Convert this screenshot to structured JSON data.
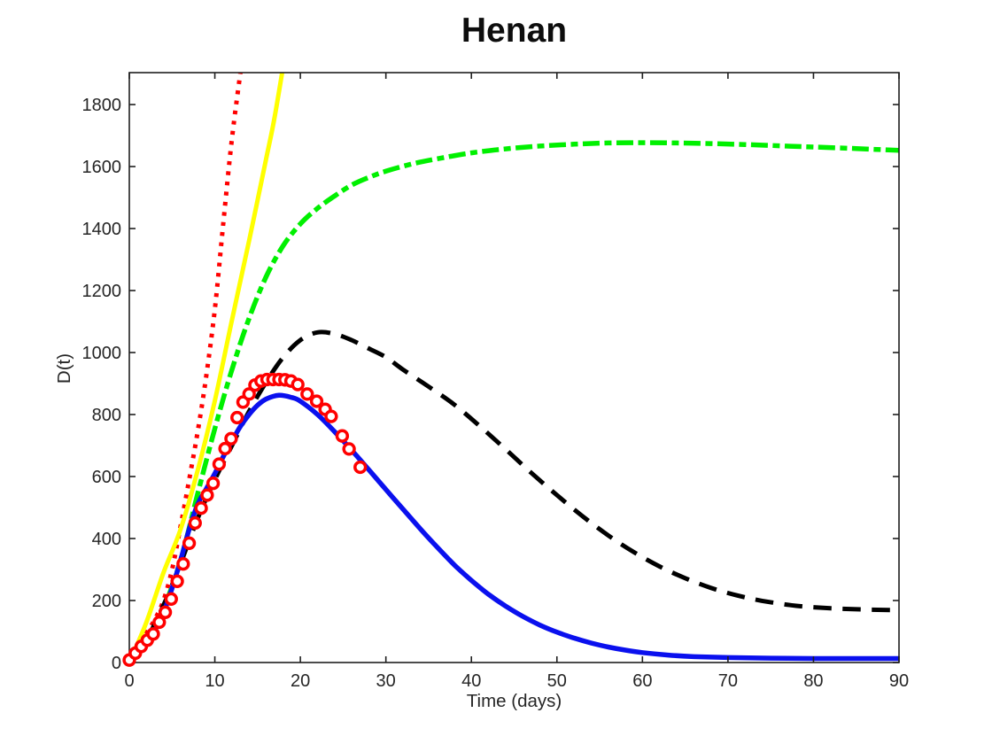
{
  "page": {
    "background": "#ffffff"
  },
  "chart_data": {
    "type": "line",
    "title": "Henan",
    "xlabel": "Time (days)",
    "ylabel": "D(t)",
    "xlim": [
      0,
      90
    ],
    "ylim": [
      0,
      1903
    ],
    "xticks": [
      0,
      10,
      20,
      30,
      40,
      50,
      60,
      70,
      80,
      90
    ],
    "yticks": [
      0,
      200,
      400,
      600,
      800,
      1000,
      1200,
      1400,
      1600,
      1800
    ],
    "grid": false,
    "legend": "none",
    "axis_color": "#1f1f1f",
    "tick_label_color": "#262626",
    "series": [
      {
        "name": "red-dotted-curve",
        "color": "#ff0000",
        "style": "dotted",
        "width": 5,
        "points": [
          [
            0,
            10
          ],
          [
            1,
            60
          ],
          [
            2,
            95
          ],
          [
            3,
            140
          ],
          [
            4,
            200
          ],
          [
            5,
            300
          ],
          [
            6,
            440
          ],
          [
            7,
            590
          ],
          [
            8,
            745
          ],
          [
            9,
            925
          ],
          [
            10,
            1140
          ],
          [
            11,
            1420
          ],
          [
            12,
            1690
          ],
          [
            13,
            1905
          ],
          [
            13.5,
            2010
          ]
        ]
      },
      {
        "name": "yellow-solid-curve",
        "color": "#ffff00",
        "style": "solid",
        "width": 5,
        "points": [
          [
            0,
            0
          ],
          [
            2,
            130
          ],
          [
            4,
            290
          ],
          [
            6,
            430
          ],
          [
            8,
            620
          ],
          [
            10,
            845
          ],
          [
            12,
            1105
          ],
          [
            14,
            1360
          ],
          [
            16,
            1625
          ],
          [
            17,
            1760
          ],
          [
            18.3,
            1975
          ]
        ]
      },
      {
        "name": "green-dashdot-curve",
        "color": "#00f000",
        "style": "dashdot",
        "width": 5.5,
        "points": [
          [
            0,
            8
          ],
          [
            2,
            70
          ],
          [
            4,
            175
          ],
          [
            6,
            330
          ],
          [
            8,
            545
          ],
          [
            10,
            755
          ],
          [
            12,
            945
          ],
          [
            14,
            1110
          ],
          [
            16,
            1245
          ],
          [
            18,
            1345
          ],
          [
            20,
            1415
          ],
          [
            22,
            1465
          ],
          [
            24,
            1505
          ],
          [
            26,
            1540
          ],
          [
            28,
            1565
          ],
          [
            30,
            1585
          ],
          [
            33,
            1608
          ],
          [
            36,
            1625
          ],
          [
            40,
            1644
          ],
          [
            44,
            1657
          ],
          [
            48,
            1666
          ],
          [
            52,
            1672
          ],
          [
            56,
            1676
          ],
          [
            60,
            1677
          ],
          [
            64,
            1676
          ],
          [
            68,
            1674
          ],
          [
            72,
            1671
          ],
          [
            76,
            1667
          ],
          [
            80,
            1663
          ],
          [
            85,
            1658
          ],
          [
            90,
            1652
          ]
        ]
      },
      {
        "name": "black-dashed-curve",
        "color": "#000000",
        "style": "dashed",
        "width": 5,
        "points": [
          [
            0,
            5
          ],
          [
            2,
            75
          ],
          [
            4,
            185
          ],
          [
            6,
            320
          ],
          [
            8,
            465
          ],
          [
            10,
            590
          ],
          [
            12,
            700
          ],
          [
            14,
            810
          ],
          [
            16,
            905
          ],
          [
            18,
            985
          ],
          [
            20,
            1040
          ],
          [
            22,
            1065
          ],
          [
            24,
            1060
          ],
          [
            26,
            1040
          ],
          [
            28,
            1013
          ],
          [
            30,
            985
          ],
          [
            32,
            945
          ],
          [
            35,
            890
          ],
          [
            38,
            832
          ],
          [
            41,
            762
          ],
          [
            44,
            688
          ],
          [
            47,
            612
          ],
          [
            50,
            540
          ],
          [
            53,
            472
          ],
          [
            56,
            410
          ],
          [
            59,
            356
          ],
          [
            62,
            310
          ],
          [
            65,
            272
          ],
          [
            68,
            241
          ],
          [
            71,
            217
          ],
          [
            74,
            199
          ],
          [
            78,
            183
          ],
          [
            82,
            175
          ],
          [
            86,
            171
          ],
          [
            90,
            169
          ]
        ]
      },
      {
        "name": "blue-solid-curve",
        "color": "#0a10ee",
        "style": "solid",
        "width": 5.5,
        "points": [
          [
            0,
            5
          ],
          [
            1,
            30
          ],
          [
            2,
            60
          ],
          [
            3,
            105
          ],
          [
            4,
            160
          ],
          [
            5,
            240
          ],
          [
            6,
            330
          ],
          [
            7,
            430
          ],
          [
            8,
            510
          ],
          [
            9,
            560
          ],
          [
            10,
            610
          ],
          [
            11,
            665
          ],
          [
            12,
            715
          ],
          [
            13,
            762
          ],
          [
            14,
            800
          ],
          [
            15,
            830
          ],
          [
            16,
            850
          ],
          [
            17.5,
            862
          ],
          [
            19,
            855
          ],
          [
            20,
            843
          ],
          [
            22,
            800
          ],
          [
            24,
            745
          ],
          [
            26,
            685
          ],
          [
            28,
            622
          ],
          [
            30,
            558
          ],
          [
            32,
            495
          ],
          [
            34,
            432
          ],
          [
            36,
            372
          ],
          [
            38,
            315
          ],
          [
            40,
            265
          ],
          [
            42,
            220
          ],
          [
            44,
            182
          ],
          [
            46,
            149
          ],
          [
            48,
            121
          ],
          [
            50,
            98
          ],
          [
            52,
            79
          ],
          [
            54,
            63
          ],
          [
            56,
            50
          ],
          [
            58,
            40
          ],
          [
            60,
            32
          ],
          [
            63,
            24
          ],
          [
            66,
            19
          ],
          [
            70,
            16
          ],
          [
            75,
            14
          ],
          [
            80,
            13
          ],
          [
            85,
            13
          ],
          [
            90,
            13
          ]
        ]
      }
    ],
    "scatter": {
      "name": "red-circle-data",
      "marker": "o",
      "edge_color": "#ff0000",
      "face_color": "#ffffff",
      "points": [
        [
          0,
          8
        ],
        [
          0.7,
          30
        ],
        [
          1.4,
          52
        ],
        [
          2.1,
          72
        ],
        [
          2.8,
          92
        ],
        [
          3.5,
          130
        ],
        [
          4.2,
          162
        ],
        [
          4.9,
          205
        ],
        [
          5.6,
          262
        ],
        [
          6.3,
          318
        ],
        [
          7,
          385
        ],
        [
          7.7,
          450
        ],
        [
          8.4,
          498
        ],
        [
          9.1,
          540
        ],
        [
          9.8,
          578
        ],
        [
          10.5,
          640
        ],
        [
          11.2,
          690
        ],
        [
          11.9,
          722
        ],
        [
          12.6,
          790
        ],
        [
          13.3,
          840
        ],
        [
          14,
          866
        ],
        [
          14.7,
          895
        ],
        [
          15.4,
          908
        ],
        [
          16.1,
          913
        ],
        [
          16.8,
          913
        ],
        [
          17.5,
          913
        ],
        [
          18.2,
          912
        ],
        [
          18.9,
          908
        ],
        [
          19.7,
          897
        ],
        [
          20.8,
          866
        ],
        [
          21.9,
          843
        ],
        [
          22.9,
          817
        ],
        [
          23.6,
          794
        ],
        [
          24.9,
          731
        ],
        [
          25.7,
          689
        ],
        [
          27,
          630
        ]
      ]
    }
  }
}
